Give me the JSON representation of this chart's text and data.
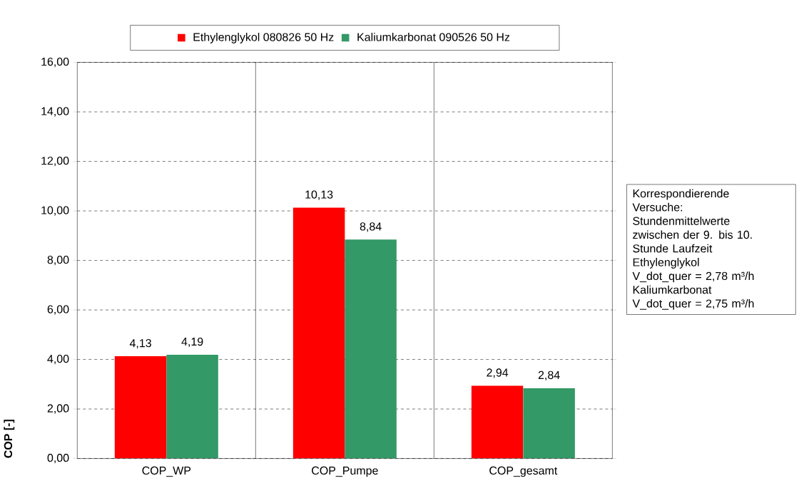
{
  "chart_data": {
    "type": "bar",
    "ylabel": "COP [-]",
    "categories": [
      "COP_WP",
      "COP_Pumpe",
      "COP_gesamt"
    ],
    "series": [
      {
        "name": "Ethylenglykol 080826 50 Hz",
        "color": "#ff0000",
        "values": [
          4.13,
          10.13,
          2.94
        ],
        "value_labels": [
          "4,13",
          "10,13",
          "2,94"
        ]
      },
      {
        "name": "Kaliumkarbonat 090526 50 Hz",
        "color": "#339966",
        "values": [
          4.19,
          8.84,
          2.84
        ],
        "value_labels": [
          "4,19",
          "8,84",
          "2,84"
        ]
      }
    ],
    "ylim": [
      0,
      16
    ],
    "yticks": [
      {
        "value": 0,
        "label": "0,00"
      },
      {
        "value": 2,
        "label": "2,00"
      },
      {
        "value": 4,
        "label": "4,00"
      },
      {
        "value": 6,
        "label": "6,00"
      },
      {
        "value": 8,
        "label": "8,00"
      },
      {
        "value": 10,
        "label": "10,00"
      },
      {
        "value": 12,
        "label": "12,00"
      },
      {
        "value": 14,
        "label": "14,00"
      },
      {
        "value": 16,
        "label": "16,00"
      }
    ],
    "grid": true,
    "legend": "top",
    "annotations": [
      "Korrespondierende",
      "Versuche:",
      "Stundenmittelwerte",
      "zwischen der 9. bis 10.",
      "Stunde Laufzeit",
      "Ethylenglykol",
      "V_dot_quer = 2,78 m³/h",
      "Kaliumkarbonat",
      "V_dot_quer = 2,75 m³/h"
    ]
  }
}
